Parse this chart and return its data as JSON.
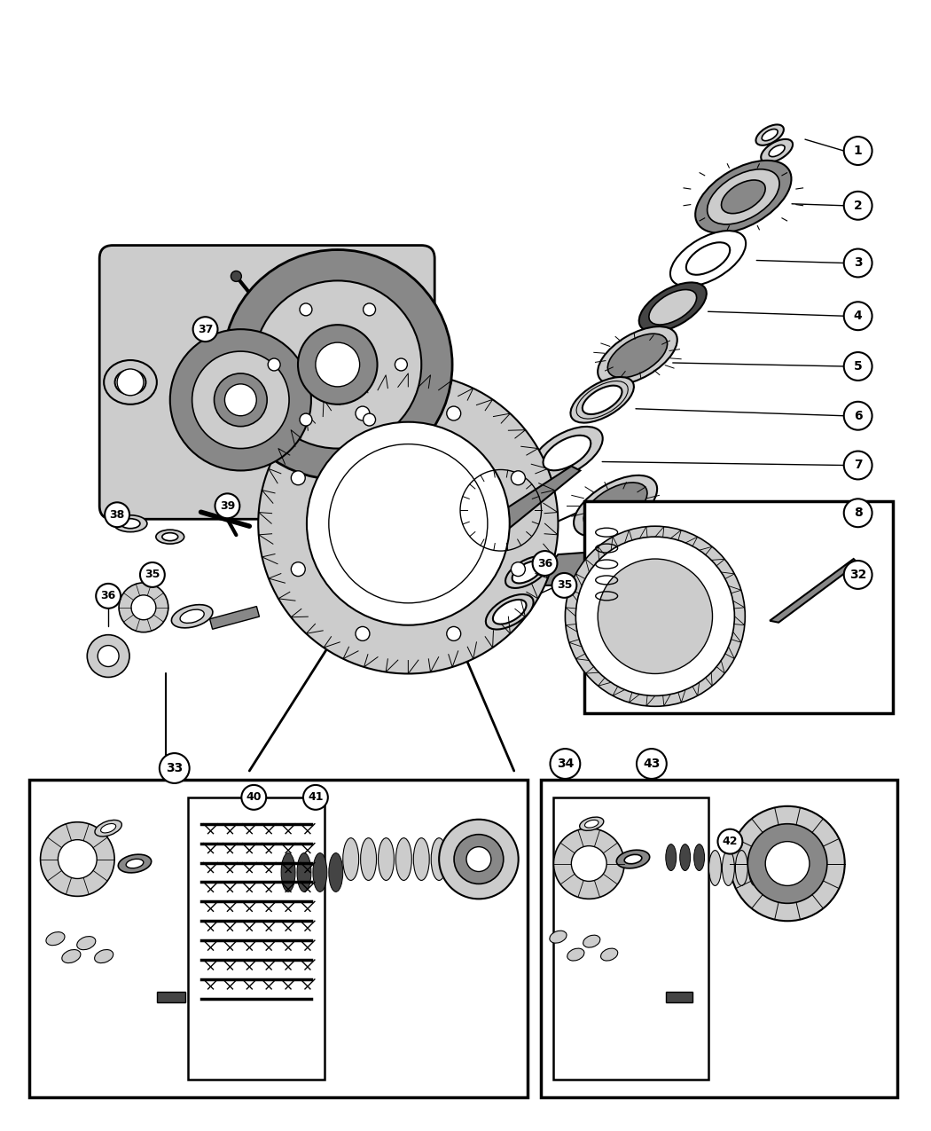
{
  "bg_color": "#ffffff",
  "fig_width": 10.5,
  "fig_height": 12.75,
  "dpi": 100,
  "black": "#000000",
  "gray1": "#cccccc",
  "gray2": "#888888",
  "gray3": "#444444",
  "white": "#ffffff"
}
